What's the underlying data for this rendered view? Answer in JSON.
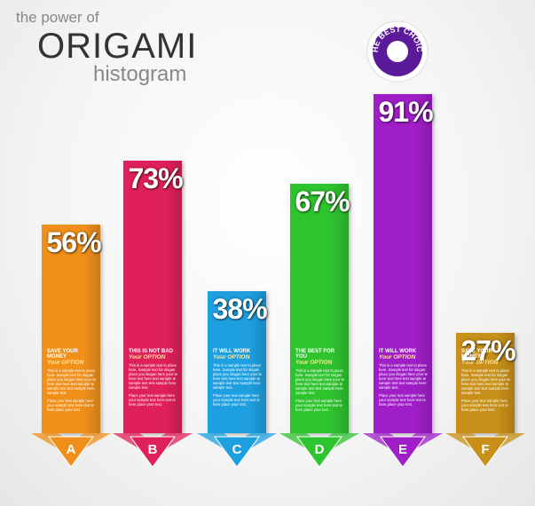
{
  "pretitle": "the power of",
  "chart_data": {
    "type": "bar",
    "title": "ORIGAMI",
    "subtitle": "histogram",
    "badge": "THE BEST CHOICE",
    "categories": [
      "A",
      "B",
      "C",
      "D",
      "E",
      "F"
    ],
    "values": [
      56,
      73,
      38,
      67,
      91,
      27
    ],
    "value_labels": [
      "56%",
      "73%",
      "38%",
      "67%",
      "91%",
      "27%"
    ],
    "colors": [
      "#f0901a",
      "#e0205a",
      "#1ea0e0",
      "#2ec42e",
      "#a01ec8",
      "#c89018"
    ],
    "headings": [
      "SAVE YOUR MONEY",
      "THIS IS NOT BAD",
      "IT WILL WORK",
      "THE BEST FOR YOU",
      "IT WILL WORK",
      "SAVE YOUR MONEY"
    ],
    "options": [
      "Your OPTION",
      "Your OPTION",
      "Your OPTION",
      "Your OPTION",
      "Your OPTION",
      "Your OPTION"
    ],
    "paragraphs": [
      [
        "This is a sample text to place here. Sample text for slogan place you slogan here your te here text here text sample te sample text text sample here sample text.",
        "Place your text sample here your sample text here text te here place your text."
      ],
      [
        "This is a sample text to place here. Sample text for slogan place you slogan here your te here text here text sample te sample text text sample here sample text.",
        "Place your text sample here your sample text here text te here place your text."
      ],
      [
        "This is a sample text to place here. Sample text for slogan place you slogan here your te here text here text sample te sample text text sample here sample text.",
        "Place your text sample here your sample text here text te here place your text."
      ],
      [
        "This is a sample text to place here. Sample text for slogan place you slogan here your te here text here text sample te sample text text sample here sample text.",
        "Place your text sample here your sample text here text te here place your text."
      ],
      [
        "This is a sample text to place here. Sample text for slogan place you slogan here your te here text here text sample te sample text text sample here sample text.",
        "Place your text sample here your sample text here text te here place your text."
      ],
      [
        "This is a sample text to place here. Sample text for slogan place you slogan here your te here text here text sample te sample text text sample here sample text.",
        "Place your text sample here your sample text here text te here place your text."
      ]
    ]
  }
}
